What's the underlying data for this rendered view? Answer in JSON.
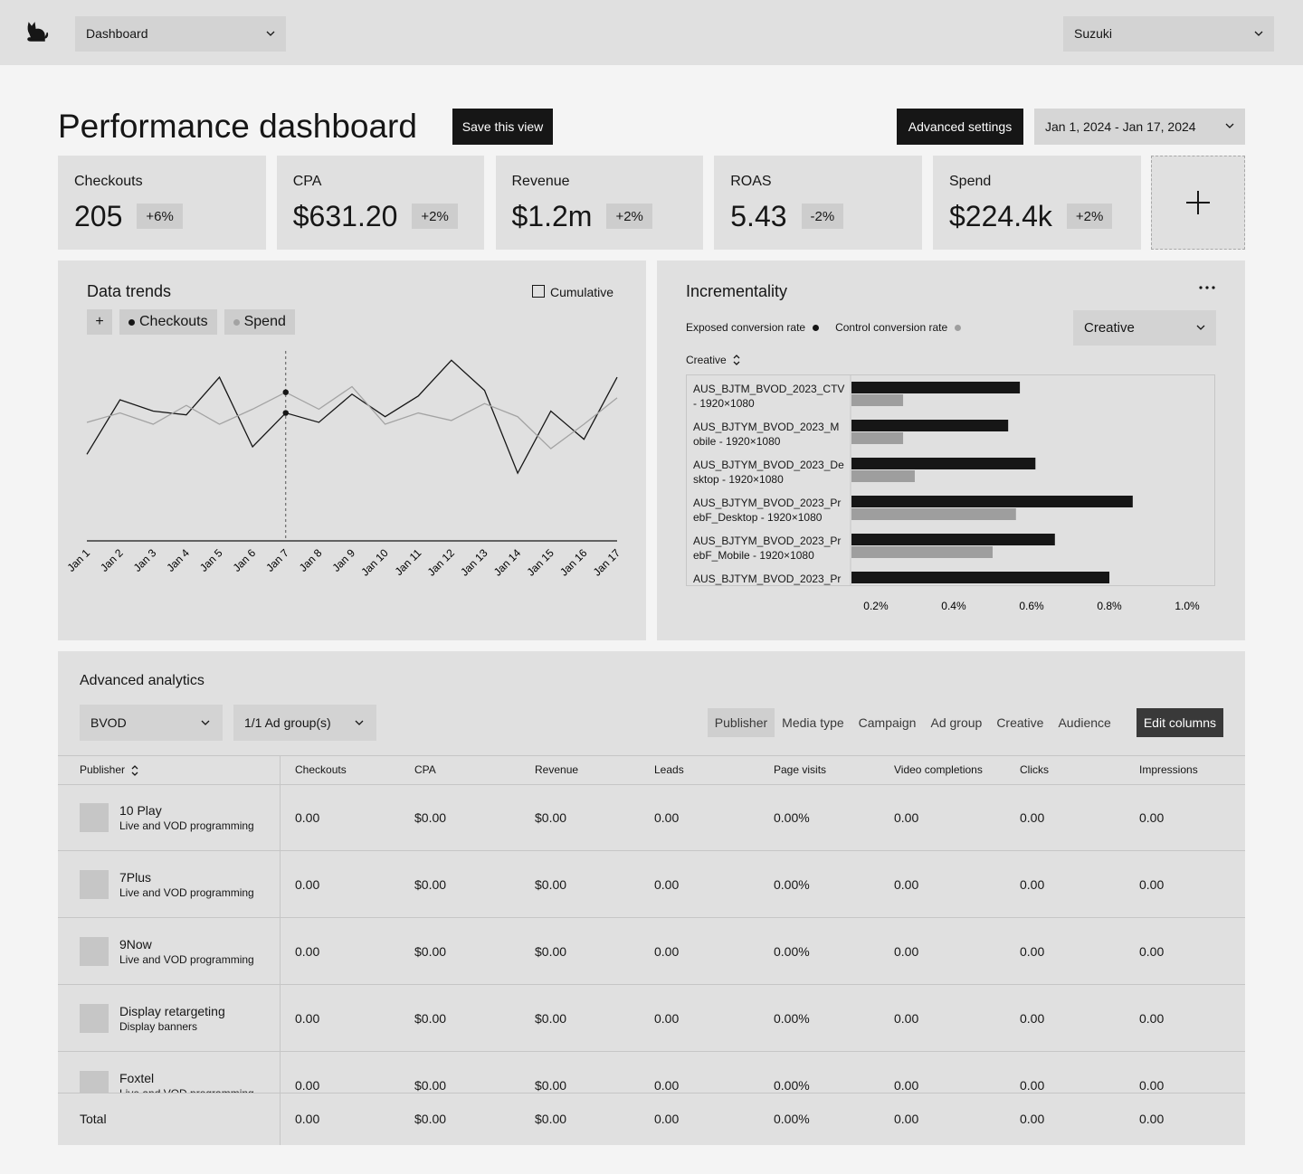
{
  "nav": {
    "dashboard_select": "Dashboard",
    "account_select": "Suzuki"
  },
  "header": {
    "title": "Performance dashboard",
    "save_button": "Save this view",
    "advanced_button": "Advanced settings",
    "date_range": "Jan 1, 2024 - Jan 17, 2024"
  },
  "kpis": [
    {
      "label": "Checkouts",
      "value": "205",
      "change": "+6%"
    },
    {
      "label": "CPA",
      "value": "$631.20",
      "change": "+2%"
    },
    {
      "label": "Revenue",
      "value": "$1.2m",
      "change": "+2%"
    },
    {
      "label": "ROAS",
      "value": "5.43",
      "change": "-2%"
    },
    {
      "label": "Spend",
      "value": "$224.4k",
      "change": "+2%"
    }
  ],
  "chart_data": [
    {
      "type": "line",
      "title": "Data trends",
      "toggle": "Cumulative",
      "add_series": "+",
      "categories": [
        "Jan 1",
        "Jan 2",
        "Jan 3",
        "Jan 4",
        "Jan 5",
        "Jan 6",
        "Jan 7",
        "Jan 8",
        "Jan 9",
        "Jan 10",
        "Jan 11",
        "Jan 12",
        "Jan 13",
        "Jan 14",
        "Jan 15",
        "Jan 16",
        "Jan 17"
      ],
      "series": [
        {
          "name": "Checkouts",
          "color": "#161616",
          "values": [
            46,
            75,
            69,
            67,
            87,
            50,
            68,
            63,
            78,
            66,
            77,
            96,
            80,
            36,
            69,
            54,
            87
          ]
        },
        {
          "name": "Spend",
          "color": "#a3a3a3",
          "values": [
            63,
            68,
            62,
            72,
            62,
            70,
            79,
            70,
            82,
            62,
            68,
            64,
            73,
            66,
            49,
            62,
            76
          ]
        }
      ],
      "ylim": [
        0,
        100
      ],
      "highlight_index": 6
    },
    {
      "type": "bar",
      "horizontal": true,
      "title": "Incrementality",
      "filter": "Creative",
      "sort_label": "Creative",
      "categories": [
        "AUS_BJTM_BVOD_2023_CTV - 1920×1080",
        "AUS_BJTYM_BVOD_2023_Mobile - 1920×1080",
        "AUS_BJTYM_BVOD_2023_Desktop - 1920×1080",
        "AUS_BJTYM_BVOD_2023_PrebF_Desktop - 1920×1080",
        "AUS_BJTYM_BVOD_2023_PrebF_Mobile - 1920×1080",
        "AUS_BJTYM_BVOD_2023_Pr"
      ],
      "series": [
        {
          "name": "Exposed conversion rate",
          "color": "#161616",
          "values": [
            0.57,
            0.54,
            0.61,
            0.86,
            0.66,
            0.8
          ]
        },
        {
          "name": "Control conversion rate",
          "color": "#9e9e9e",
          "values": [
            0.27,
            0.27,
            0.3,
            0.56,
            0.5,
            null
          ]
        }
      ],
      "xlim": [
        0.135,
        1.072
      ],
      "xticks": [
        {
          "value": 0.2,
          "label": "0.2%"
        },
        {
          "value": 0.4,
          "label": "0.4%"
        },
        {
          "value": 0.6,
          "label": "0.6%"
        },
        {
          "value": 0.8,
          "label": "0.8%"
        },
        {
          "value": 1.0,
          "label": "1.0%"
        }
      ]
    }
  ],
  "analytics": {
    "title": "Advanced analytics",
    "filters": [
      "BVOD",
      "1/1 Ad group(s)"
    ],
    "tabs": [
      "Publisher",
      "Media type",
      "Campaign",
      "Ad group",
      "Creative",
      "Audience"
    ],
    "active_tab": 0,
    "edit_button": "Edit columns",
    "columns": [
      "Publisher",
      "Checkouts",
      "CPA",
      "Revenue",
      "Leads",
      "Page visits",
      "Video completions",
      "Clicks",
      "Impressions"
    ],
    "rows": [
      {
        "name": "10 Play",
        "subtitle": "Live and VOD programming",
        "cells": [
          "0.00",
          "$0.00",
          "$0.00",
          "0.00",
          "0.00%",
          "0.00",
          "0.00",
          "0.00"
        ]
      },
      {
        "name": "7Plus",
        "subtitle": "Live and VOD programming",
        "cells": [
          "0.00",
          "$0.00",
          "$0.00",
          "0.00",
          "0.00%",
          "0.00",
          "0.00",
          "0.00"
        ]
      },
      {
        "name": "9Now",
        "subtitle": "Live and VOD programming",
        "cells": [
          "0.00",
          "$0.00",
          "$0.00",
          "0.00",
          "0.00%",
          "0.00",
          "0.00",
          "0.00"
        ]
      },
      {
        "name": "Display retargeting",
        "subtitle": "Display banners",
        "cells": [
          "0.00",
          "$0.00",
          "$0.00",
          "0.00",
          "0.00%",
          "0.00",
          "0.00",
          "0.00"
        ]
      },
      {
        "name": "Foxtel",
        "subtitle": "Live and VOD programming",
        "cells": [
          "0.00",
          "$0.00",
          "$0.00",
          "0.00",
          "0.00%",
          "0.00",
          "0.00",
          "0.00"
        ]
      }
    ],
    "total": {
      "label": "Total",
      "cells": [
        "0.00",
        "$0.00",
        "$0.00",
        "0.00",
        "0.00%",
        "0.00",
        "0.00",
        "0.00"
      ]
    }
  }
}
